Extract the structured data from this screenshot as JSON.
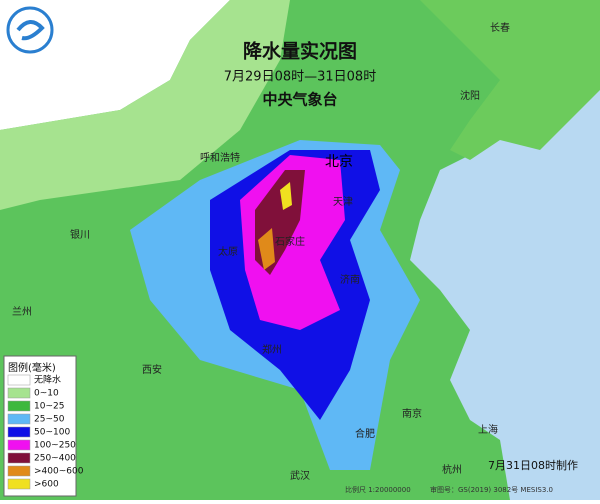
{
  "header": {
    "title": "降水量实况图",
    "period": "7月29日08时—31日08时",
    "agency": "中央气象台"
  },
  "cities": [
    "长春",
    "沈阳",
    "呼和浩特",
    "北京",
    "天津",
    "银川",
    "太原",
    "石家庄",
    "济南",
    "兰州",
    "西安",
    "郑州",
    "南京",
    "上海",
    "合肥",
    "武汉",
    "杭州"
  ],
  "legend": {
    "title": "图例(毫米)",
    "items": [
      {
        "label": "无降水",
        "color": "#ffffff"
      },
      {
        "label": "0~10",
        "color": "#a6e38f"
      },
      {
        "label": "10~25",
        "color": "#3db83d"
      },
      {
        "label": "25~50",
        "color": "#5fb8f5"
      },
      {
        "label": "50~100",
        "color": "#1010e6"
      },
      {
        "label": "100~250",
        "color": "#f010f0"
      },
      {
        "label": "250~400",
        "color": "#80103a"
      },
      {
        "label": ">400~600",
        "color": "#e08a1a"
      },
      {
        "label": ">600",
        "color": "#f0e020"
      }
    ]
  },
  "footer": {
    "made": "7月31日08时制作",
    "scale": "比例尺 1:20000000",
    "approval": "审图号：GS(2019) 3082号 MESIS3.0"
  }
}
